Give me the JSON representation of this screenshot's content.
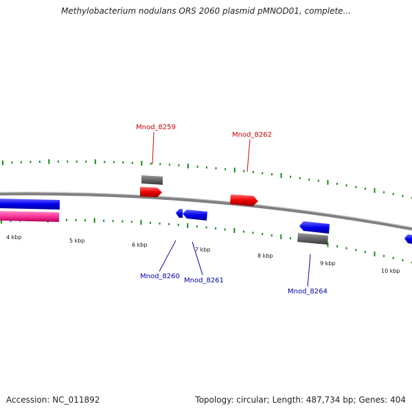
{
  "title": "Methylobacterium nodulans ORS 2060 plasmid pMNOD01, complete...",
  "footer": {
    "accession": "Accession: NC_011892",
    "topology": "Topology: circular; Length: 487,734 bp; Genes: 404"
  },
  "scale_labels": [
    "4 kbp",
    "5 kbp",
    "6 kbp",
    "7 kbp",
    "8 kbp",
    "9 kbp",
    "10 kbp"
  ],
  "gene_labels": [
    {
      "id": "Mnod_8259",
      "color": "#cc0000"
    },
    {
      "id": "Mnod_8262",
      "color": "#cc0000"
    },
    {
      "id": "Mnod_8260",
      "color": "#0000aa"
    },
    {
      "id": "Mnod_8261",
      "color": "#0000aa"
    },
    {
      "id": "Mnod_8264",
      "color": "#0000aa"
    }
  ],
  "colors": {
    "forward_gene": "#ee0000",
    "reverse_gene": "#0000ee",
    "rna_gene": "#ff3399",
    "other_feature": "#666666",
    "backbone": "#808080",
    "tick": "#118811"
  }
}
